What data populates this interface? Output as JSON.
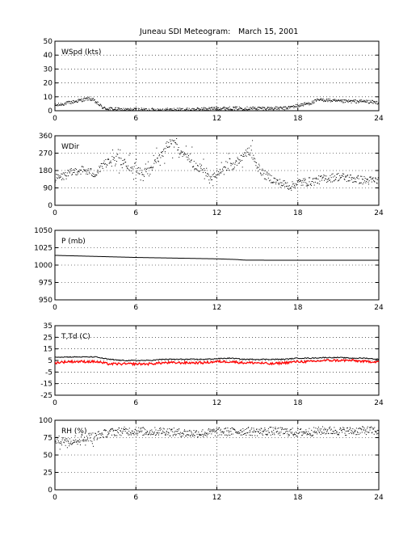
{
  "figure": {
    "title_station": "Juneau SDI Meteogram:",
    "title_date": "March 15, 2001"
  },
  "chart_data": [
    {
      "type": "scatter",
      "label": "WSpd (kts)",
      "xlim": [
        0,
        24
      ],
      "ylim": [
        0,
        50
      ],
      "xticks": [
        0,
        6,
        12,
        18,
        24
      ],
      "yticks": [
        0,
        10,
        20,
        30,
        40,
        50
      ],
      "grid": true,
      "series": [
        {
          "color": "#000000",
          "marker": "dot",
          "keypoints": [
            [
              0,
              4
            ],
            [
              0.5,
              5
            ],
            [
              1,
              6
            ],
            [
              1.5,
              7
            ],
            [
              2,
              8
            ],
            [
              2.5,
              9
            ],
            [
              2.8,
              8
            ],
            [
              3.2,
              5
            ],
            [
              3.6,
              2
            ],
            [
              5,
              1
            ],
            [
              6,
              1
            ],
            [
              8,
              1
            ],
            [
              10,
              1
            ],
            [
              12,
              2
            ],
            [
              14,
              2
            ],
            [
              16,
              2
            ],
            [
              17,
              2
            ],
            [
              18,
              4
            ],
            [
              19,
              6
            ],
            [
              19.5,
              8
            ],
            [
              20,
              8
            ],
            [
              21,
              7
            ],
            [
              22,
              7
            ],
            [
              23,
              7
            ],
            [
              24,
              6
            ]
          ]
        }
      ]
    },
    {
      "type": "scatter",
      "label": "WDir",
      "xlim": [
        0,
        24
      ],
      "ylim": [
        0,
        360
      ],
      "xticks": [
        0,
        6,
        12,
        18,
        24
      ],
      "yticks": [
        0,
        90,
        180,
        270,
        360
      ],
      "grid": true,
      "series": [
        {
          "color": "#000000",
          "marker": "dot",
          "keypoints": [
            [
              0,
              140
            ],
            [
              0.5,
              150
            ],
            [
              1,
              165
            ],
            [
              1.5,
              180
            ],
            [
              2,
              185
            ],
            [
              2.5,
              175
            ],
            [
              3,
              165
            ],
            [
              3.5,
              210
            ],
            [
              4,
              240
            ],
            [
              4.5,
              250
            ],
            [
              5,
              230
            ],
            [
              5.5,
              200
            ],
            [
              6,
              190
            ],
            [
              6.5,
              170
            ],
            [
              7,
              175
            ],
            [
              7.5,
              230
            ],
            [
              8,
              290
            ],
            [
              8.5,
              330
            ],
            [
              9,
              300
            ],
            [
              9.5,
              270
            ],
            [
              10,
              230
            ],
            [
              10.5,
              200
            ],
            [
              11,
              190
            ],
            [
              11.5,
              150
            ],
            [
              12,
              160
            ],
            [
              12.5,
              180
            ],
            [
              13,
              200
            ],
            [
              13.5,
              230
            ],
            [
              14,
              270
            ],
            [
              14.5,
              280
            ],
            [
              15,
              200
            ],
            [
              15.5,
              160
            ],
            [
              16,
              140
            ],
            [
              16.5,
              120
            ],
            [
              17,
              110
            ],
            [
              17.5,
              100
            ],
            [
              18,
              120
            ],
            [
              19,
              125
            ],
            [
              20,
              140
            ],
            [
              21,
              150
            ],
            [
              22,
              140
            ],
            [
              23,
              130
            ],
            [
              24,
              130
            ]
          ]
        }
      ]
    },
    {
      "type": "line",
      "label": "P (mb)",
      "xlim": [
        0,
        24
      ],
      "ylim": [
        950,
        1050
      ],
      "xticks": [
        0,
        6,
        12,
        18,
        24
      ],
      "yticks": [
        950,
        975,
        1000,
        1025,
        1050
      ],
      "grid": true,
      "series": [
        {
          "color": "#000000",
          "keypoints": [
            [
              0,
              1014
            ],
            [
              3,
              1012.5
            ],
            [
              6,
              1011
            ],
            [
              9,
              1010
            ],
            [
              12,
              1009
            ],
            [
              13.5,
              1008
            ],
            [
              14,
              1007.2
            ],
            [
              16,
              1007
            ],
            [
              20,
              1007
            ],
            [
              24,
              1007
            ]
          ]
        }
      ]
    },
    {
      "type": "line",
      "label": "T,Td (C)",
      "xlim": [
        0,
        24
      ],
      "ylim": [
        -25,
        35
      ],
      "xticks": [
        0,
        6,
        12,
        18,
        24
      ],
      "yticks": [
        -25,
        -15,
        -5,
        5,
        15,
        25,
        35
      ],
      "grid": true,
      "series": [
        {
          "color": "#000000",
          "keypoints": [
            [
              0,
              8
            ],
            [
              1,
              8
            ],
            [
              2,
              8
            ],
            [
              3,
              8
            ],
            [
              4,
              6
            ],
            [
              5,
              5
            ],
            [
              6,
              5
            ],
            [
              7,
              5
            ],
            [
              8,
              6
            ],
            [
              9,
              6
            ],
            [
              10,
              6
            ],
            [
              11,
              6
            ],
            [
              12,
              6.5
            ],
            [
              13,
              7
            ],
            [
              14,
              6
            ],
            [
              15,
              6
            ],
            [
              16,
              6
            ],
            [
              17,
              6
            ],
            [
              18,
              7
            ],
            [
              19,
              7
            ],
            [
              20,
              7.5
            ],
            [
              21,
              7.5
            ],
            [
              22,
              7
            ],
            [
              23,
              7
            ],
            [
              24,
              6
            ]
          ]
        },
        {
          "color": "#ff0000",
          "keypoints": [
            [
              0,
              3
            ],
            [
              1,
              4
            ],
            [
              2,
              4
            ],
            [
              3,
              4
            ],
            [
              4,
              2
            ],
            [
              5,
              2
            ],
            [
              6,
              2
            ],
            [
              7,
              2
            ],
            [
              8,
              3
            ],
            [
              9,
              3
            ],
            [
              10,
              3
            ],
            [
              11,
              3
            ],
            [
              12,
              4
            ],
            [
              13,
              4
            ],
            [
              14,
              3
            ],
            [
              15,
              3
            ],
            [
              16,
              2
            ],
            [
              17,
              3
            ],
            [
              18,
              4
            ],
            [
              19,
              4
            ],
            [
              20,
              5
            ],
            [
              21,
              5
            ],
            [
              22,
              5
            ],
            [
              23,
              4
            ],
            [
              24,
              4
            ]
          ]
        }
      ]
    },
    {
      "type": "scatter",
      "label": "RH (%)",
      "xlim": [
        0,
        24
      ],
      "ylim": [
        0,
        100
      ],
      "xticks": [
        0,
        6,
        12,
        18,
        24
      ],
      "yticks": [
        0,
        25,
        50,
        75,
        100
      ],
      "grid": true,
      "series": [
        {
          "color": "#000000",
          "marker": "dot",
          "keypoints": [
            [
              0,
              72
            ],
            [
              1,
              72
            ],
            [
              2,
              75
            ],
            [
              3,
              78
            ],
            [
              4,
              83
            ],
            [
              5,
              85
            ],
            [
              6,
              85
            ],
            [
              7,
              84
            ],
            [
              8,
              85
            ],
            [
              9,
              83
            ],
            [
              10,
              82
            ],
            [
              11,
              82
            ],
            [
              12,
              84
            ],
            [
              13,
              84
            ],
            [
              14,
              85
            ],
            [
              15,
              84
            ],
            [
              16,
              85
            ],
            [
              17,
              84
            ],
            [
              18,
              83
            ],
            [
              19,
              84
            ],
            [
              20,
              86
            ],
            [
              21,
              85
            ],
            [
              22,
              85
            ],
            [
              23,
              86
            ],
            [
              24,
              85
            ]
          ]
        }
      ]
    }
  ]
}
